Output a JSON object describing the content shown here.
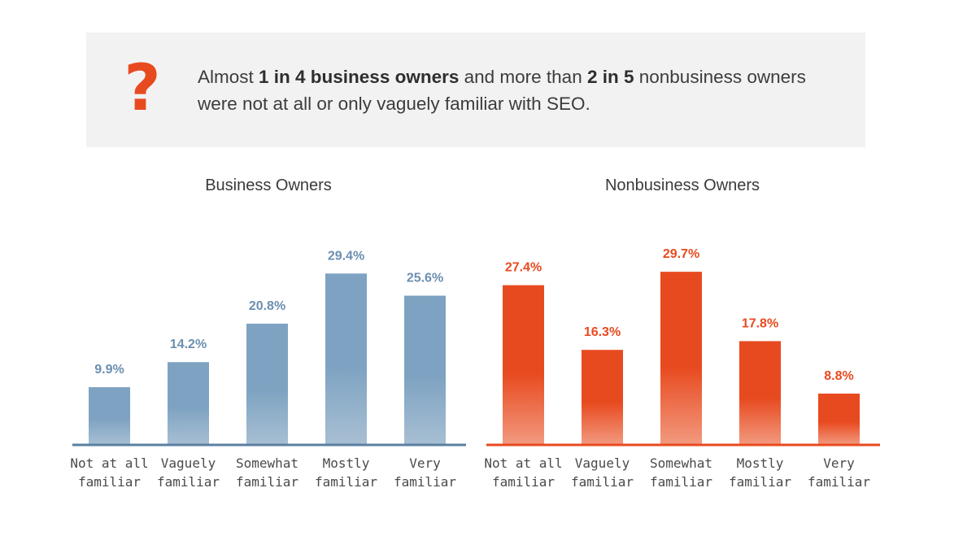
{
  "callout": {
    "icon": "question-mark-icon",
    "icon_glyph": "?",
    "icon_color": "#e84a1f",
    "text_parts": [
      "Almost ",
      "1 in 4 business owners",
      " and more than ",
      "2 in 5",
      " nonbusiness owners were not at all or only vaguely familiar with SEO."
    ]
  },
  "chart_data": [
    {
      "type": "bar",
      "title": "Business Owners",
      "categories": [
        [
          "Not at all",
          "familiar"
        ],
        [
          "Vaguely",
          "familiar"
        ],
        [
          "Somewhat",
          "familiar"
        ],
        [
          "Mostly",
          "familiar"
        ],
        [
          "Very",
          "familiar"
        ]
      ],
      "values": [
        9.9,
        14.2,
        20.8,
        29.4,
        25.6
      ],
      "value_labels": [
        "9.9%",
        "14.2%",
        "20.8%",
        "29.4%",
        "25.6%"
      ],
      "ylim": [
        0,
        30
      ],
      "grid": false,
      "color": "#7ea3c2",
      "color_light": "#a8bfd3",
      "label_color": "#6b8fb0",
      "baseline_color": "#5a7fa0"
    },
    {
      "type": "bar",
      "title": "Nonbusiness Owners",
      "categories": [
        [
          "Not at all",
          "familiar"
        ],
        [
          "Vaguely",
          "familiar"
        ],
        [
          "Somewhat",
          "familiar"
        ],
        [
          "Mostly",
          "familiar"
        ],
        [
          "Very",
          "familiar"
        ]
      ],
      "values": [
        27.4,
        16.3,
        29.7,
        17.8,
        8.8
      ],
      "value_labels": [
        "27.4%",
        "16.3%",
        "29.7%",
        "17.8%",
        "8.8%"
      ],
      "ylim": [
        0,
        30
      ],
      "grid": false,
      "color": "#e84a1f",
      "color_light": "#f29a80",
      "label_color": "#e84a1f",
      "baseline_color": "#e84a1f"
    }
  ]
}
